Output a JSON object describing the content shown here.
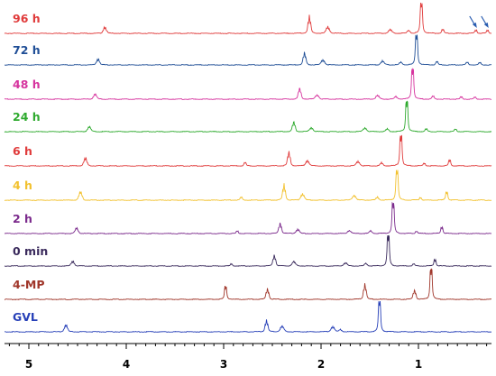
{
  "chart_data": {
    "type": "line",
    "title": "",
    "xlabel": "",
    "ylabel": "",
    "x_axis": {
      "min": 5.25,
      "max": 0.25,
      "reversed": true,
      "ticks": [
        5,
        4,
        3,
        2,
        1
      ],
      "tick_labels": [
        "5",
        "4",
        "3",
        "2",
        "1"
      ]
    },
    "grid": false,
    "annotations": [
      {
        "type": "arrow",
        "trace": "96 h",
        "points_to_ppm": 0.4,
        "color": "#2a5db0"
      },
      {
        "type": "arrow",
        "trace": "96 h",
        "points_to_ppm": 0.28,
        "color": "#2a5db0"
      }
    ],
    "series": [
      {
        "name": "96 h",
        "color": "#e03b3b",
        "peaks": [
          {
            "ppm": 4.22,
            "h": 0.18,
            "m": 4
          },
          {
            "ppm": 2.12,
            "h": 0.55,
            "m": 3
          },
          {
            "ppm": 1.93,
            "h": 0.2,
            "m": 5
          },
          {
            "ppm": 1.29,
            "h": 0.12,
            "m": 5
          },
          {
            "ppm": 1.1,
            "h": 0.1,
            "m": 3
          },
          {
            "ppm": 0.97,
            "h": 1.0,
            "m": 2
          },
          {
            "ppm": 0.75,
            "h": 0.12,
            "m": 2
          },
          {
            "ppm": 0.41,
            "h": 0.1,
            "m": 2
          },
          {
            "ppm": 0.29,
            "h": 0.09,
            "m": 2
          }
        ]
      },
      {
        "name": "72 h",
        "color": "#1f4e96",
        "peaks": [
          {
            "ppm": 4.29,
            "h": 0.17,
            "m": 4
          },
          {
            "ppm": 2.17,
            "h": 0.4,
            "m": 3
          },
          {
            "ppm": 1.98,
            "h": 0.16,
            "m": 5
          },
          {
            "ppm": 1.37,
            "h": 0.12,
            "m": 5
          },
          {
            "ppm": 1.18,
            "h": 0.09,
            "m": 3
          },
          {
            "ppm": 1.02,
            "h": 1.0,
            "m": 2
          },
          {
            "ppm": 0.81,
            "h": 0.1,
            "m": 2
          },
          {
            "ppm": 0.5,
            "h": 0.08,
            "m": 2
          },
          {
            "ppm": 0.37,
            "h": 0.07,
            "m": 2
          }
        ]
      },
      {
        "name": "48 h",
        "color": "#d6339e",
        "peaks": [
          {
            "ppm": 4.32,
            "h": 0.15,
            "m": 4
          },
          {
            "ppm": 2.22,
            "h": 0.36,
            "m": 3
          },
          {
            "ppm": 2.04,
            "h": 0.14,
            "m": 5
          },
          {
            "ppm": 1.42,
            "h": 0.12,
            "m": 5
          },
          {
            "ppm": 1.23,
            "h": 0.09,
            "m": 3
          },
          {
            "ppm": 1.06,
            "h": 1.0,
            "m": 2
          },
          {
            "ppm": 0.85,
            "h": 0.09,
            "m": 2
          },
          {
            "ppm": 0.56,
            "h": 0.07,
            "m": 2
          },
          {
            "ppm": 0.42,
            "h": 0.06,
            "m": 2
          }
        ]
      },
      {
        "name": "24 h",
        "color": "#2eaa2e",
        "peaks": [
          {
            "ppm": 4.38,
            "h": 0.15,
            "m": 4
          },
          {
            "ppm": 2.28,
            "h": 0.32,
            "m": 3
          },
          {
            "ppm": 2.1,
            "h": 0.13,
            "m": 5
          },
          {
            "ppm": 1.55,
            "h": 0.12,
            "m": 5
          },
          {
            "ppm": 1.32,
            "h": 0.09,
            "m": 3
          },
          {
            "ppm": 1.12,
            "h": 1.0,
            "m": 2
          },
          {
            "ppm": 0.92,
            "h": 0.08,
            "m": 2
          },
          {
            "ppm": 0.62,
            "h": 0.07,
            "m": 2
          }
        ]
      },
      {
        "name": "6 h",
        "color": "#e03b3b",
        "peaks": [
          {
            "ppm": 4.42,
            "h": 0.22,
            "m": 4
          },
          {
            "ppm": 2.78,
            "h": 0.1,
            "m": 2
          },
          {
            "ppm": 2.33,
            "h": 0.45,
            "m": 3
          },
          {
            "ppm": 2.14,
            "h": 0.17,
            "m": 5
          },
          {
            "ppm": 1.62,
            "h": 0.14,
            "m": 5
          },
          {
            "ppm": 1.38,
            "h": 0.1,
            "m": 3
          },
          {
            "ppm": 1.18,
            "h": 1.0,
            "m": 2
          },
          {
            "ppm": 0.94,
            "h": 0.08,
            "m": 2
          },
          {
            "ppm": 0.68,
            "h": 0.18,
            "m": 2
          }
        ]
      },
      {
        "name": "4 h",
        "color": "#f2c12e",
        "peaks": [
          {
            "ppm": 4.47,
            "h": 0.24,
            "m": 4
          },
          {
            "ppm": 2.82,
            "h": 0.09,
            "m": 2
          },
          {
            "ppm": 2.38,
            "h": 0.5,
            "m": 3
          },
          {
            "ppm": 2.19,
            "h": 0.2,
            "m": 5
          },
          {
            "ppm": 1.66,
            "h": 0.16,
            "m": 5
          },
          {
            "ppm": 1.42,
            "h": 0.1,
            "m": 3
          },
          {
            "ppm": 1.22,
            "h": 1.0,
            "m": 2
          },
          {
            "ppm": 0.98,
            "h": 0.08,
            "m": 2
          },
          {
            "ppm": 0.71,
            "h": 0.26,
            "m": 2
          }
        ]
      },
      {
        "name": "2 h",
        "color": "#7b2a8c",
        "peaks": [
          {
            "ppm": 4.51,
            "h": 0.16,
            "m": 4
          },
          {
            "ppm": 2.86,
            "h": 0.07,
            "m": 2
          },
          {
            "ppm": 2.42,
            "h": 0.34,
            "m": 3
          },
          {
            "ppm": 2.24,
            "h": 0.13,
            "m": 5
          },
          {
            "ppm": 1.71,
            "h": 0.1,
            "m": 5
          },
          {
            "ppm": 1.49,
            "h": 0.09,
            "m": 3
          },
          {
            "ppm": 1.26,
            "h": 1.0,
            "m": 2
          },
          {
            "ppm": 1.02,
            "h": 0.07,
            "m": 2
          },
          {
            "ppm": 0.76,
            "h": 0.2,
            "m": 2
          }
        ]
      },
      {
        "name": "0 min",
        "color": "#3a2a5c",
        "peaks": [
          {
            "ppm": 4.55,
            "h": 0.14,
            "m": 4
          },
          {
            "ppm": 2.92,
            "h": 0.06,
            "m": 2
          },
          {
            "ppm": 2.48,
            "h": 0.36,
            "m": 3
          },
          {
            "ppm": 2.28,
            "h": 0.14,
            "m": 5
          },
          {
            "ppm": 1.75,
            "h": 0.1,
            "m": 5
          },
          {
            "ppm": 1.54,
            "h": 0.09,
            "m": 3
          },
          {
            "ppm": 1.31,
            "h": 1.0,
            "m": 2
          },
          {
            "ppm": 1.05,
            "h": 0.06,
            "m": 2
          },
          {
            "ppm": 0.83,
            "h": 0.2,
            "m": 2
          }
        ]
      },
      {
        "name": "4-MP",
        "color": "#a0362a",
        "peaks": [
          {
            "ppm": 2.98,
            "h": 0.4,
            "m": 2
          },
          {
            "ppm": 2.55,
            "h": 0.35,
            "m": 3
          },
          {
            "ppm": 1.55,
            "h": 0.5,
            "m": 3
          },
          {
            "ppm": 1.04,
            "h": 0.3,
            "m": 3
          },
          {
            "ppm": 0.87,
            "h": 1.0,
            "m": 2
          }
        ]
      },
      {
        "name": "GVL",
        "color": "#2740b8",
        "peaks": [
          {
            "ppm": 4.62,
            "h": 0.2,
            "m": 4
          },
          {
            "ppm": 2.56,
            "h": 0.38,
            "m": 3
          },
          {
            "ppm": 2.4,
            "h": 0.18,
            "m": 5
          },
          {
            "ppm": 1.88,
            "h": 0.16,
            "m": 5
          },
          {
            "ppm": 1.8,
            "h": 0.08,
            "m": 3
          },
          {
            "ppm": 1.4,
            "h": 1.0,
            "m": 2
          }
        ]
      }
    ]
  }
}
